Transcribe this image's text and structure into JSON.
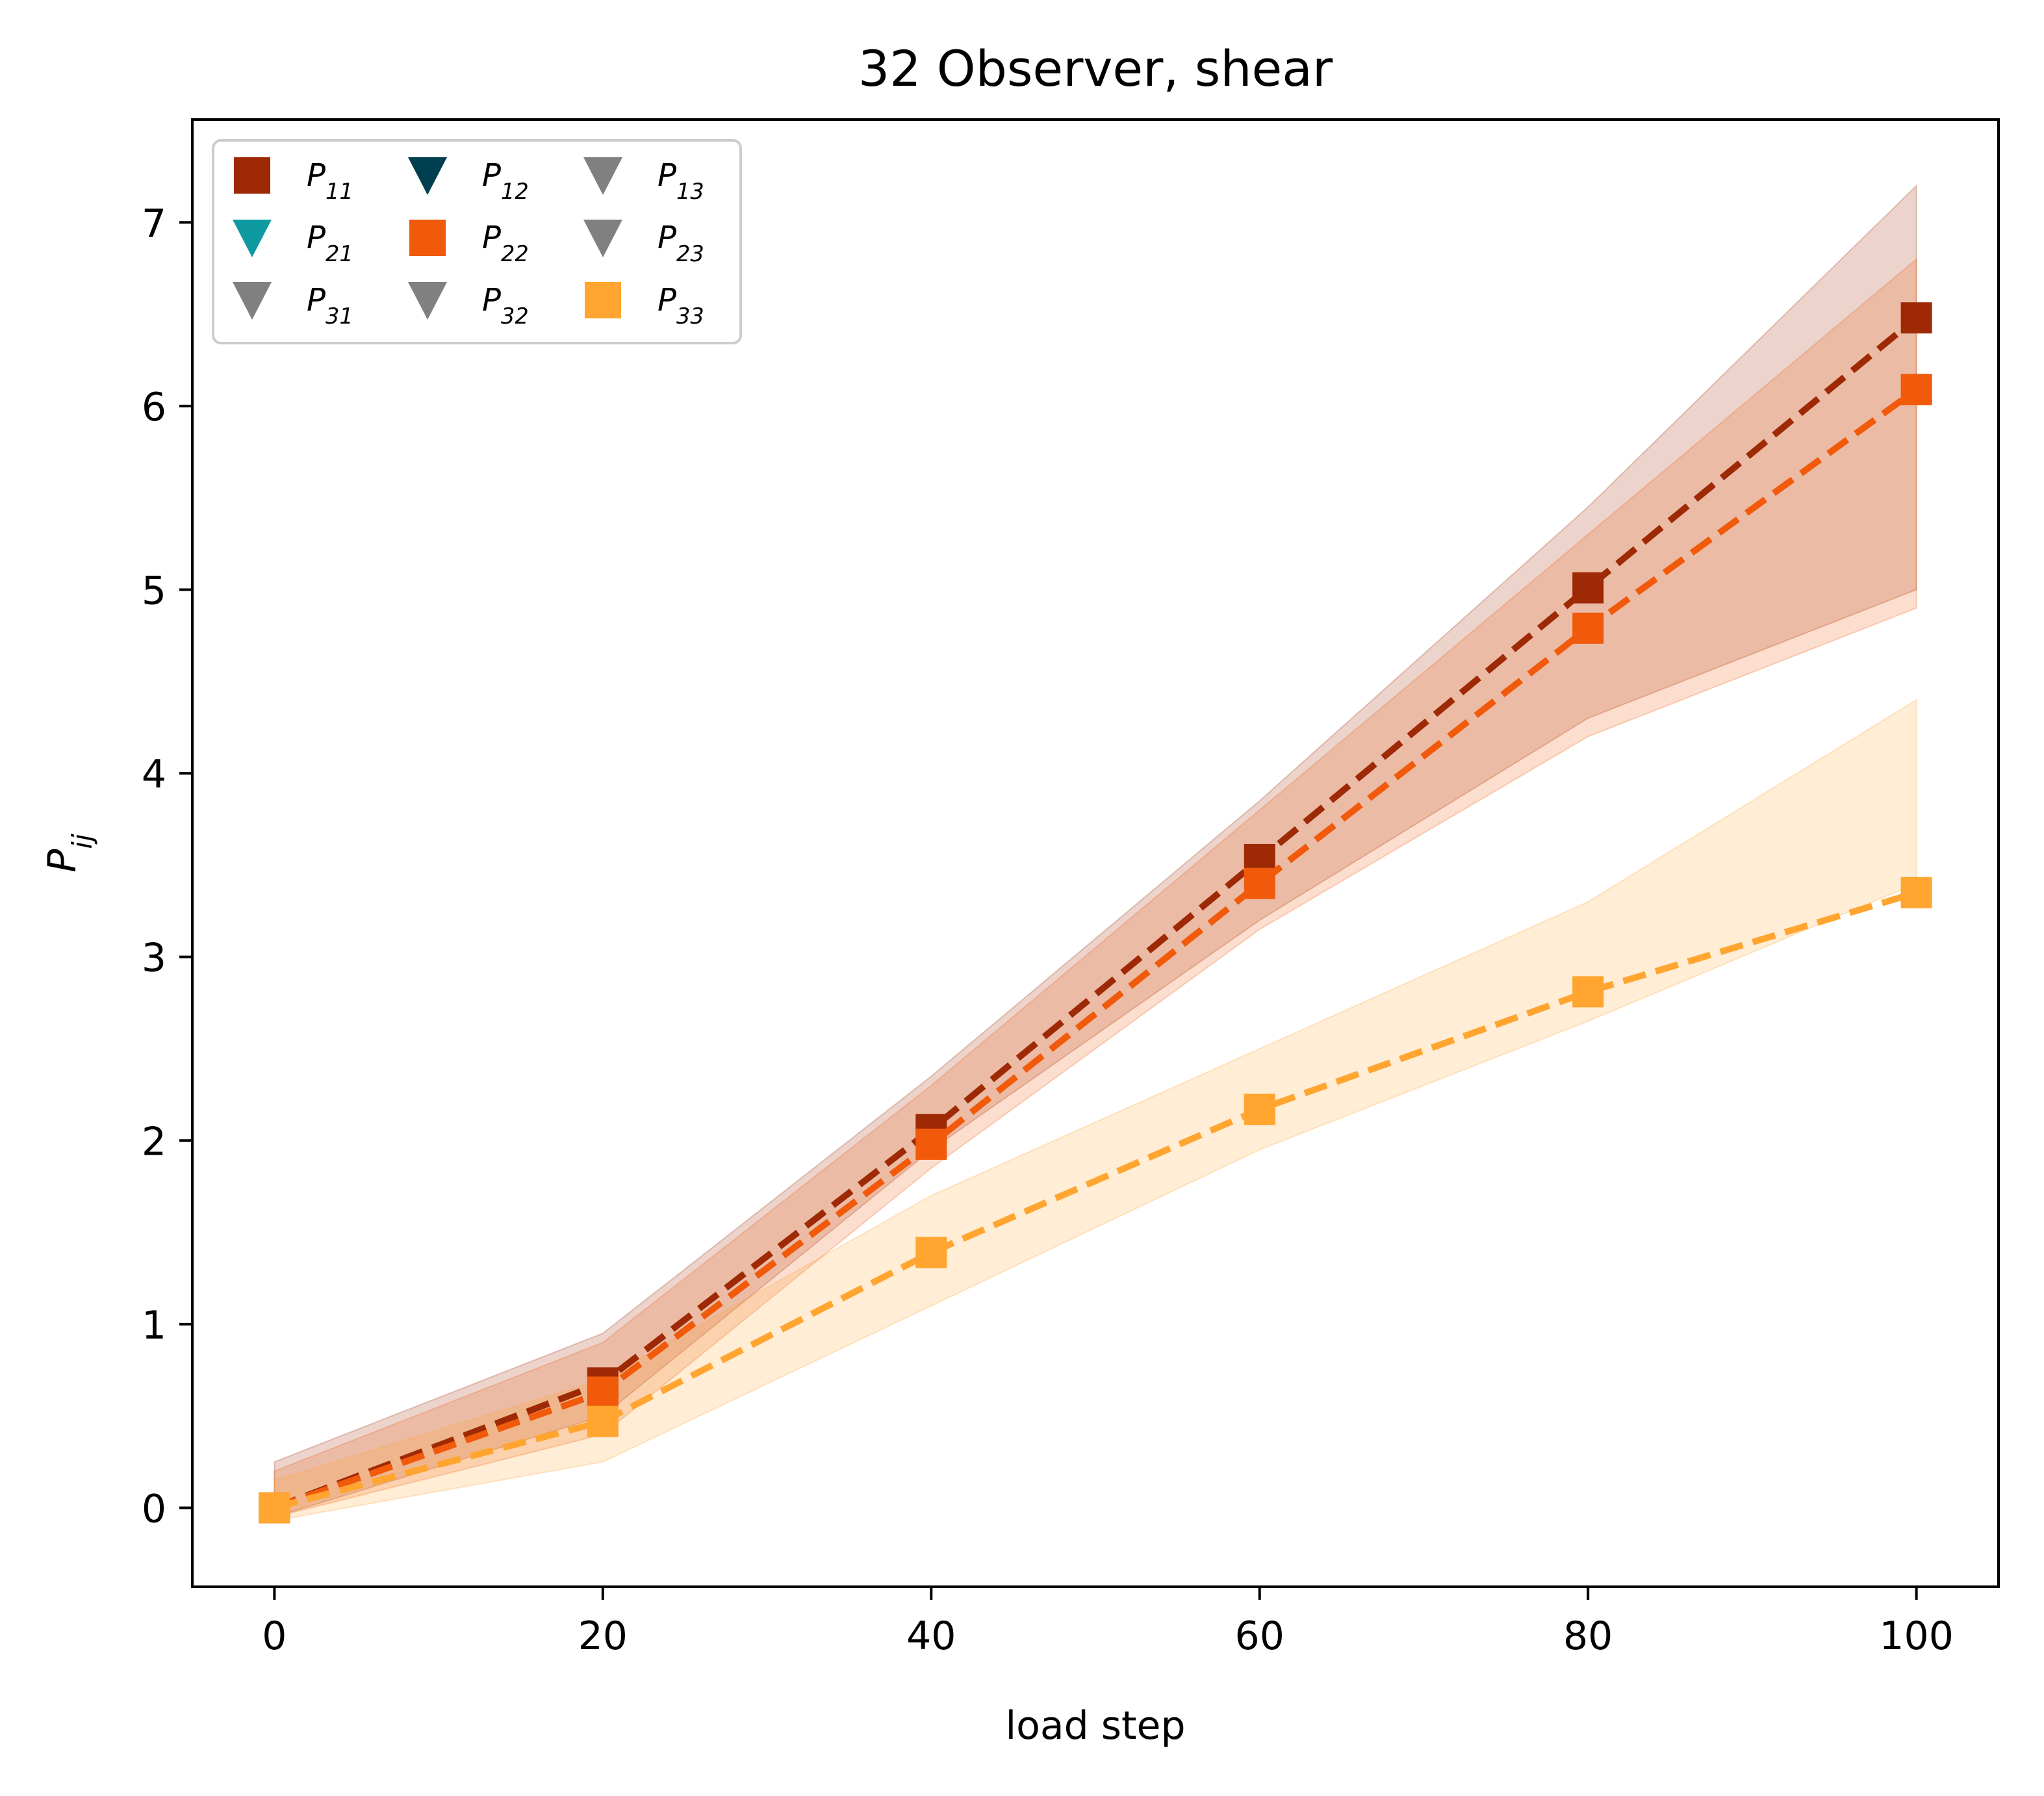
{
  "chart_data": {
    "type": "line",
    "title": "32 Observer, shear",
    "x_label": "load step",
    "y_label": "Pij",
    "x": [
      0,
      20,
      40,
      60,
      80,
      100
    ],
    "xlim": [
      -5,
      105
    ],
    "ylim": [
      -0.43,
      7.56
    ],
    "xticks": [
      0,
      20,
      40,
      60,
      80,
      100
    ],
    "yticks": [
      0,
      1,
      2,
      3,
      4,
      5,
      6,
      7
    ],
    "legend_position": "upper left",
    "legend_columns": 3,
    "series": [
      {
        "name": "P11",
        "color": "#9e2a05",
        "marker": "square",
        "values": [
          0,
          0.68,
          2.06,
          3.53,
          5.01,
          6.48
        ],
        "lower": [
          -0.05,
          0.5,
          1.95,
          3.2,
          4.3,
          5.0
        ],
        "upper": [
          0.25,
          0.95,
          2.35,
          3.85,
          5.45,
          7.2
        ]
      },
      {
        "name": "P21",
        "color": "#0e9aa0",
        "marker": "triangle"
      },
      {
        "name": "P31",
        "color": "#808080",
        "marker": "triangle"
      },
      {
        "name": "P12",
        "color": "#003f4f",
        "marker": "triangle"
      },
      {
        "name": "P22",
        "color": "#f05a0a",
        "marker": "square",
        "values": [
          0,
          0.63,
          1.98,
          3.4,
          4.79,
          6.09
        ],
        "lower": [
          -0.05,
          0.4,
          1.85,
          3.15,
          4.2,
          4.9
        ],
        "upper": [
          0.2,
          0.9,
          2.3,
          3.8,
          5.3,
          6.8
        ]
      },
      {
        "name": "P32",
        "color": "#808080",
        "marker": "triangle"
      },
      {
        "name": "P13",
        "color": "#808080",
        "marker": "triangle"
      },
      {
        "name": "P23",
        "color": "#808080",
        "marker": "triangle"
      },
      {
        "name": "P33",
        "color": "#ffa530",
        "marker": "square",
        "values": [
          0,
          0.47,
          1.39,
          2.17,
          2.81,
          3.35
        ],
        "lower": [
          -0.07,
          0.25,
          1.1,
          1.95,
          2.65,
          3.4
        ],
        "upper": [
          0.15,
          0.7,
          1.7,
          2.5,
          3.3,
          4.4
        ]
      }
    ]
  }
}
